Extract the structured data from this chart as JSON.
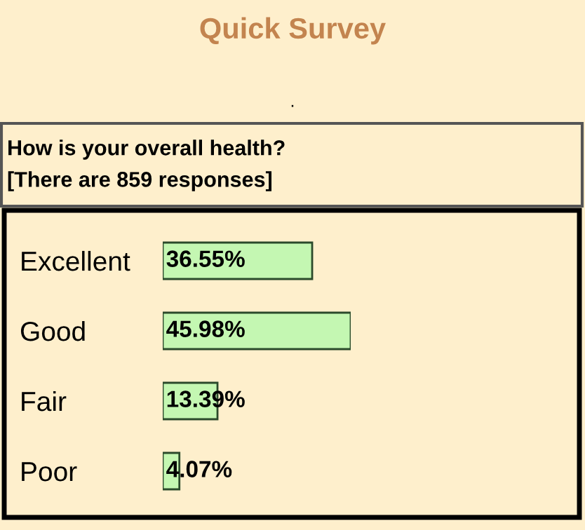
{
  "chart_data": {
    "type": "bar",
    "orientation": "horizontal",
    "title": "Quick Survey",
    "subtitle": "How is your overall health?\n[There are 859 responses]",
    "annotations": [
      "."
    ],
    "categories": [
      "Excellent",
      "Good",
      "Fair",
      "Poor"
    ],
    "values": [
      36.55,
      45.98,
      13.39,
      4.07
    ],
    "value_labels": [
      "36.55%",
      "45.98%",
      "13.39%",
      "4.07%"
    ],
    "color": "#c4f7b2",
    "grid": false
  }
}
